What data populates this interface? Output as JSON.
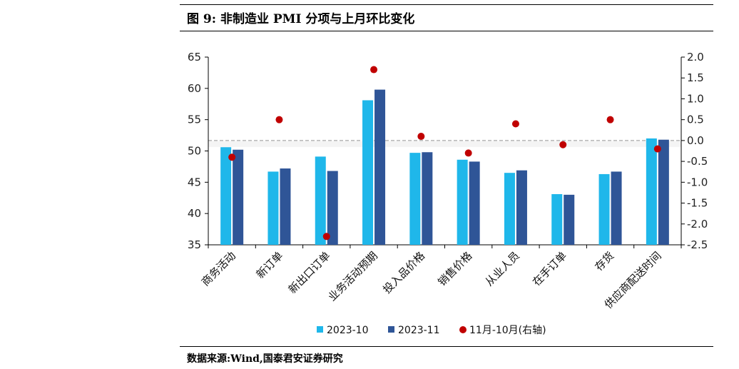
{
  "figure_title": "图 9: 非制造业 PMI 分项与上月环比变化",
  "source_note": "数据来源:Wind,国泰君安证券研究",
  "colors": {
    "series_2023_10": "#1fb7ea",
    "series_2023_11": "#2f5597",
    "series_diff": "#c00000",
    "zero_line": "#a6a6a6"
  },
  "chart_data": {
    "type": "bar",
    "categories": [
      "商务活动",
      "新订单",
      "新出口订单",
      "业务活动预期",
      "投入品价格",
      "销售价格",
      "从业人员",
      "在手订单",
      "存货",
      "供应商配送时间"
    ],
    "series": [
      {
        "name": "2023-10",
        "axis": "left",
        "values": [
          50.6,
          46.7,
          49.1,
          58.1,
          49.7,
          48.6,
          46.5,
          43.1,
          46.3,
          52.0
        ]
      },
      {
        "name": "2023-11",
        "axis": "left",
        "values": [
          50.2,
          47.2,
          46.8,
          59.8,
          49.8,
          48.3,
          46.9,
          43.0,
          46.7,
          51.8
        ]
      },
      {
        "name": "11月-10月(右轴)",
        "axis": "right",
        "type": "scatter",
        "values": [
          -0.4,
          0.5,
          -2.3,
          1.7,
          0.1,
          -0.3,
          0.4,
          -0.1,
          0.5,
          -0.2
        ]
      }
    ],
    "y_left": {
      "min": 35,
      "max": 65,
      "ticks": [
        "35",
        "40",
        "45",
        "50",
        "55",
        "60",
        "65"
      ]
    },
    "y_right": {
      "min": -2.5,
      "max": 2.0,
      "ticks": [
        "-2.5",
        "-2.0",
        "-1.5",
        "-1.0",
        "-0.5",
        "0.0",
        "0.5",
        "1.0",
        "1.5",
        "2.0"
      ]
    },
    "legend_position": "bottom",
    "grid": false
  }
}
